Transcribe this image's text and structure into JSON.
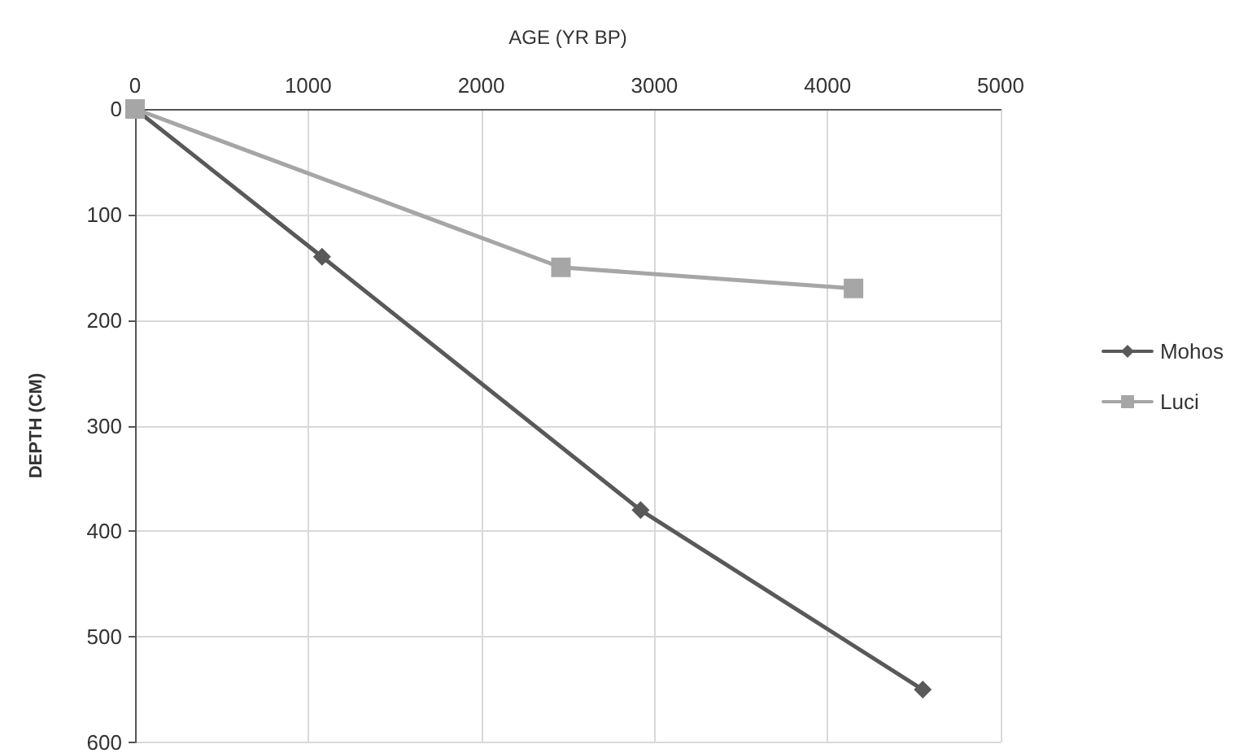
{
  "chart_data": {
    "type": "line",
    "xlabel": "AGE (YR BP)",
    "ylabel": "DEPTH (CM)",
    "xlim": [
      0,
      5000
    ],
    "xticks": [
      0,
      1000,
      2000,
      3000,
      4000,
      5000
    ],
    "ylim": [
      600,
      0
    ],
    "yticks": [
      0,
      100,
      200,
      300,
      400,
      500,
      600
    ],
    "grid": true,
    "legend": "right",
    "series": [
      {
        "name": "Mohos",
        "color": "#595959",
        "marker": "diamond",
        "x": [
          0,
          1080,
          2920,
          4550
        ],
        "values": [
          0,
          140,
          380,
          550
        ]
      },
      {
        "name": "Luci",
        "color": "#a6a6a6",
        "marker": "square",
        "x": [
          0,
          2460,
          4150
        ],
        "values": [
          0,
          150,
          170
        ]
      }
    ]
  }
}
